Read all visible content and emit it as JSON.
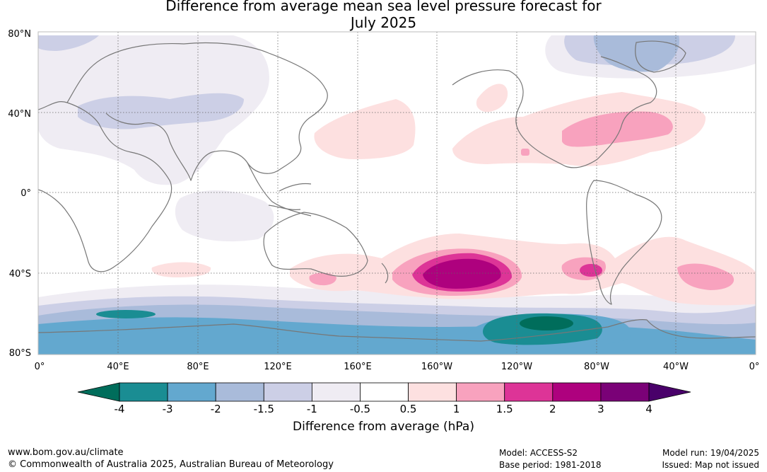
{
  "title": {
    "line1": "Difference from average mean sea level pressure forecast for",
    "line2": "July 2025"
  },
  "map": {
    "lat_labels": [
      "80°N",
      "40°N",
      "0°",
      "40°S",
      "80°S"
    ],
    "lon_labels": [
      "0°",
      "40°E",
      "80°E",
      "120°E",
      "160°E",
      "160°W",
      "120°W",
      "80°W",
      "40°W",
      "0°"
    ]
  },
  "colorbar": {
    "ticks": [
      "-4",
      "-3",
      "-2",
      "-1.5",
      "-1",
      "-0.5",
      "0.5",
      "1",
      "1.5",
      "2",
      "3",
      "4"
    ],
    "colors": [
      "#1a8d93",
      "#63a8cf",
      "#a9bbda",
      "#cccfe6",
      "#efecf3",
      "#ffffff",
      "#fde0e0",
      "#f8a2be",
      "#dd3497",
      "#ae017e",
      "#7a0177"
    ],
    "under_color": "#006d5b",
    "over_color": "#49006a",
    "label": "Difference from average (hPa)"
  },
  "footer": {
    "url": "www.bom.gov.au/climate",
    "copyright": "© Commonwealth of Australia 2025, Australian Bureau of Meteorology",
    "model": "Model: ACCESS-S2",
    "base_period": "Base period: 1981-2018",
    "model_run": "Model run: 19/04/2025",
    "issued": "Issued: Map not issued"
  }
}
